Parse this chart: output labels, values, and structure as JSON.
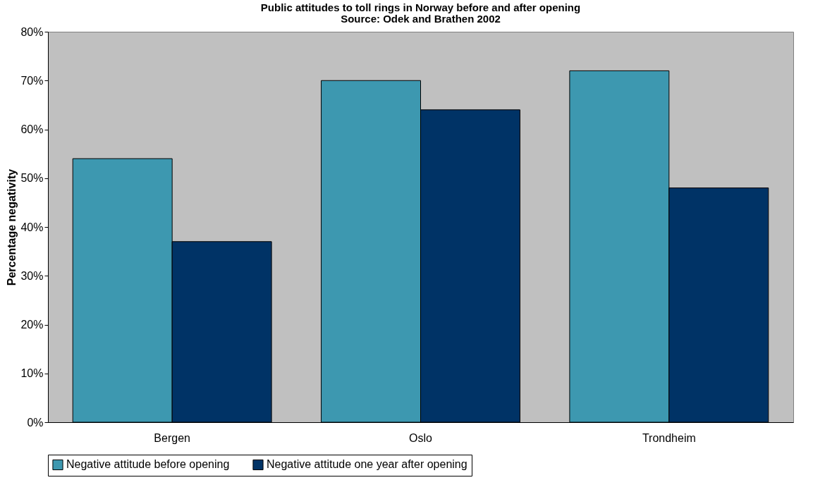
{
  "chart_data": {
    "type": "bar",
    "title": "Public attitudes to toll rings in Norway before and after opening",
    "subtitle": "Source: Odek and Brathen 2002",
    "ylabel": "Percentage negativity",
    "categories": [
      "Bergen",
      "Oslo",
      "Trondheim"
    ],
    "series": [
      {
        "name": "Negative attitude before opening",
        "color": "#3d98b0",
        "values": [
          54,
          70,
          72
        ]
      },
      {
        "name": "Negative attitude one year after opening",
        "color": "#003366",
        "values": [
          37,
          64,
          48
        ]
      }
    ],
    "ylim": [
      0,
      80
    ],
    "yticks": [
      {
        "value": 0,
        "label": "0%"
      },
      {
        "value": 10,
        "label": "10%"
      },
      {
        "value": 20,
        "label": "20%"
      },
      {
        "value": 30,
        "label": "30%"
      },
      {
        "value": 40,
        "label": "40%"
      },
      {
        "value": 50,
        "label": "50%"
      },
      {
        "value": 60,
        "label": "60%"
      },
      {
        "value": 70,
        "label": "70%"
      },
      {
        "value": 80,
        "label": "80%"
      }
    ],
    "grid": false,
    "legend": "bottom"
  }
}
